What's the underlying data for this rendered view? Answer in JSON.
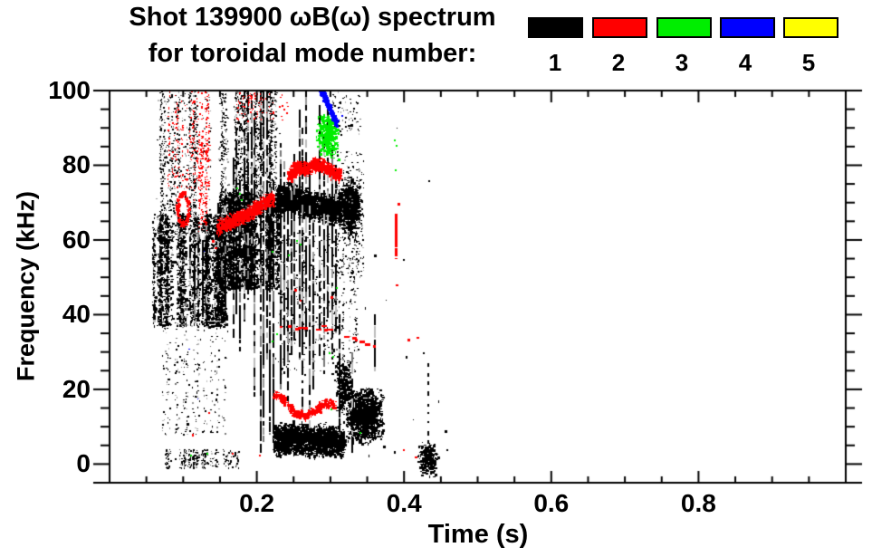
{
  "chart_data": {
    "type": "scatter",
    "title": "Shot 139900 ωB(ω) spectrum",
    "subtitle": "for toroidal mode number:",
    "x_axis": {
      "label": "Time (s)",
      "range": [
        0,
        1.0
      ],
      "major_ticks": [
        0.2,
        0.4,
        0.6,
        0.8
      ],
      "minor_tick_step": 0.05,
      "tick_labels": [
        "0.2",
        "0.4",
        "0.6",
        "0.8"
      ]
    },
    "y_axis": {
      "label": "Frequency (kHz)",
      "range": [
        -5,
        100
      ],
      "major_ticks": [
        100,
        80,
        60,
        40,
        20,
        0
      ],
      "minor_tick_step": 5,
      "tick_labels": [
        "100",
        "80",
        "60",
        "40",
        "20",
        "0"
      ]
    },
    "legend": {
      "entries": [
        {
          "label": "1",
          "color": "#000000"
        },
        {
          "label": "2",
          "color": "#ff0000"
        },
        {
          "label": "3",
          "color": "#00ee00"
        },
        {
          "label": "4",
          "color": "#0000ff"
        },
        {
          "label": "5",
          "color": "#ffff00"
        }
      ]
    },
    "mode_colors": {
      "1": "#000000",
      "2": "#ff0000",
      "3": "#00ee00",
      "4": "#0000ff",
      "5": "#ffff00"
    },
    "grid": false,
    "features": [
      {
        "mode": 1,
        "kind": "cloud",
        "desc": "n=1 sparse speckle 60-100 kHz",
        "t": [
          0.062,
          0.138
        ],
        "f": [
          60,
          100
        ],
        "n": 850,
        "size": [
          1,
          2
        ],
        "streaky": true,
        "gray": 0.25
      },
      {
        "mode": 1,
        "kind": "cloud",
        "desc": "n=1 dense cloud 37-67 kHz",
        "t": [
          0.058,
          0.158
        ],
        "f": [
          37,
          67
        ],
        "n": 2800,
        "size": [
          1,
          3
        ],
        "streaky": true,
        "gray": 0.12
      },
      {
        "mode": 1,
        "kind": "cloud",
        "desc": "n=1 sparse tail 8-38 kHz",
        "t": [
          0.07,
          0.16
        ],
        "f": [
          8,
          38
        ],
        "n": 280,
        "size": [
          1,
          2
        ],
        "streaky": true,
        "gray": 0.35
      },
      {
        "mode": 1,
        "kind": "cloud",
        "desc": "n=1 dense 47-73 kHz",
        "t": [
          0.148,
          0.228
        ],
        "f": [
          47,
          73
        ],
        "n": 3200,
        "size": [
          1,
          3
        ],
        "streaky": true,
        "gray": 0.1
      },
      {
        "mode": 1,
        "kind": "cloud",
        "desc": "n=1 upper speckle 73-100 kHz",
        "t": [
          0.148,
          0.232
        ],
        "f": [
          73,
          100
        ],
        "n": 1000,
        "size": [
          1,
          2
        ],
        "streaky": true,
        "gray": 0.25
      },
      {
        "mode": 1,
        "kind": "band",
        "desc": "n=1 band ~65-75 kHz",
        "path": [
          [
            0.225,
            70.5
          ],
          [
            0.245,
            71.5
          ],
          [
            0.265,
            70
          ],
          [
            0.285,
            69
          ],
          [
            0.3,
            68.5
          ],
          [
            0.315,
            69
          ],
          [
            0.335,
            70.5
          ]
        ],
        "halfw": 4.5,
        "n": 2400,
        "size": [
          1,
          3
        ]
      },
      {
        "mode": 1,
        "kind": "blob",
        "desc": "n=1 blob ~69 kHz at 0.33 s",
        "c": [
          0.326,
          69
        ],
        "rt": 0.012,
        "rf": 6,
        "n": 600,
        "size": [
          1,
          3
        ]
      },
      {
        "mode": 1,
        "kind": "cloud",
        "desc": "n=1 halo 50-84 kHz",
        "t": [
          0.307,
          0.345
        ],
        "f": [
          50,
          84
        ],
        "n": 240,
        "size": [
          1,
          2
        ],
        "gray": 0.2
      },
      {
        "mode": 1,
        "kind": "cloud",
        "desc": "n=1 sparse mid 24-62 kHz",
        "t": [
          0.225,
          0.335
        ],
        "f": [
          24,
          62
        ],
        "n": 480,
        "size": [
          1,
          2
        ],
        "streaky": true,
        "gray": 0.25
      },
      {
        "mode": 1,
        "kind": "cloud",
        "desc": "n=1 top specks 88-100 kHz",
        "t": [
          0.295,
          0.34
        ],
        "f": [
          88,
          100
        ],
        "n": 80,
        "size": [
          1,
          2
        ],
        "gray": 0.3
      },
      {
        "mode": 1,
        "kind": "band",
        "desc": "n=1 low band 2-11 kHz",
        "path": [
          [
            0.222,
            6.5
          ],
          [
            0.25,
            7
          ],
          [
            0.275,
            6.5
          ],
          [
            0.3,
            6.5
          ],
          [
            0.317,
            6
          ]
        ],
        "halfw": 4.8,
        "n": 2000,
        "size": [
          1,
          3
        ]
      },
      {
        "mode": 1,
        "kind": "blob",
        "desc": "n=1 blob 8-20 kHz",
        "c": [
          0.345,
          13
        ],
        "rt": 0.02,
        "rf": 5.5,
        "n": 1100,
        "size": [
          1,
          3
        ]
      },
      {
        "mode": 1,
        "kind": "blob",
        "desc": "n=1 lobe ~21 kHz",
        "c": [
          0.317,
          21
        ],
        "rt": 0.009,
        "rf": 5.5,
        "n": 300,
        "size": [
          1,
          3
        ]
      },
      {
        "mode": 1,
        "kind": "cloud",
        "desc": "n=1 bottom speckles",
        "t": [
          0.073,
          0.175
        ],
        "f": [
          -1,
          4
        ],
        "n": 300,
        "size": [
          1,
          2
        ],
        "streaky": true,
        "gray": 0.2
      },
      {
        "mode": 1,
        "kind": "blob",
        "desc": "n=1 blob near 0.43 s",
        "c": [
          0.431,
          1.5
        ],
        "rt": 0.01,
        "rf": 3.5,
        "n": 240,
        "size": [
          1,
          3
        ]
      },
      {
        "mode": 1,
        "kind": "vlines",
        "desc": "n=1 broadband bursts",
        "w": 2,
        "gray": 0.25,
        "lines": [
          [
            0.11,
            41,
            61
          ],
          [
            0.1155,
            39,
            59
          ],
          [
            0.121,
            42,
            63
          ],
          [
            0.1265,
            38,
            60
          ],
          [
            0.132,
            40,
            64
          ],
          [
            0.147,
            40,
            70
          ],
          [
            0.152,
            37,
            67
          ],
          [
            0.158,
            42,
            73
          ],
          [
            0.168,
            34,
            82
          ],
          [
            0.1725,
            40,
            90
          ],
          [
            0.177,
            30,
            76
          ],
          [
            0.1835,
            38,
            100
          ],
          [
            0.1885,
            44,
            100
          ],
          [
            0.1925,
            52,
            99
          ],
          [
            0.197,
            18,
            94
          ],
          [
            0.2055,
            3,
            100
          ],
          [
            0.2095,
            6,
            100
          ],
          [
            0.2135,
            28,
            100
          ],
          [
            0.218,
            8,
            86
          ],
          [
            0.2225,
            6,
            76
          ],
          [
            0.2325,
            20,
            86
          ],
          [
            0.2375,
            24,
            81
          ],
          [
            0.2425,
            17,
            70
          ],
          [
            0.247,
            28,
            78
          ],
          [
            0.2515,
            33,
            83
          ],
          [
            0.258,
            28,
            95
          ],
          [
            0.2625,
            14,
            90
          ],
          [
            0.2675,
            34,
            100
          ],
          [
            0.272,
            9,
            81
          ],
          [
            0.2765,
            20,
            70
          ],
          [
            0.285,
            29,
            96
          ],
          [
            0.292,
            24,
            88
          ],
          [
            0.297,
            39,
            97
          ],
          [
            0.302,
            28,
            90
          ],
          [
            0.307,
            35,
            80
          ],
          [
            0.313,
            8,
            40
          ],
          [
            0.33,
            3,
            30
          ],
          [
            0.36,
            25,
            40
          ]
        ]
      },
      {
        "mode": 1,
        "kind": "vlines",
        "desc": "n=1 dashed streak 0.434 s",
        "w": 2,
        "dash": true,
        "lines": [
          [
            0.4335,
            4,
            27
          ]
        ]
      },
      {
        "mode": 1,
        "kind": "dots",
        "desc": "n=1 scattered points",
        "size": [
          1,
          3
        ],
        "pts": [
          [
            0.359,
            56
          ],
          [
            0.375,
            44
          ],
          [
            0.39,
            90
          ],
          [
            0.398,
            55
          ],
          [
            0.402,
            29
          ],
          [
            0.412,
            12
          ],
          [
            0.372,
            5
          ],
          [
            0.386,
            3.5
          ],
          [
            0.352,
            2.5
          ],
          [
            0.337,
            31
          ],
          [
            0.347,
            42
          ],
          [
            0.433,
            76
          ],
          [
            0.425,
            30
          ],
          [
            0.447,
            17
          ],
          [
            0.455,
            9
          ],
          [
            0.322,
            95
          ],
          [
            0.327,
            91
          ],
          [
            0.303,
            99
          ],
          [
            0.312,
            97
          ],
          [
            0.097,
            14
          ],
          [
            0.105,
            11
          ],
          [
            0.445,
            2
          ],
          [
            0.458,
            4
          ]
        ]
      },
      {
        "mode": 2,
        "kind": "cloud",
        "desc": "n=2 speckle 74-100 kHz",
        "t": [
          0.078,
          0.136
        ],
        "f": [
          74,
          101
        ],
        "n": 270,
        "size": [
          1,
          2
        ],
        "streaky": true
      },
      {
        "mode": 2,
        "kind": "ring",
        "desc": "n=2 ring ~68.5 kHz",
        "c": [
          0.099,
          68.5
        ],
        "rt": 0.0078,
        "rf": 4,
        "n": 170,
        "size": [
          1,
          3
        ]
      },
      {
        "mode": 2,
        "kind": "cloud",
        "desc": "n=2 dashes 62-88 kHz",
        "t": [
          0.114,
          0.134
        ],
        "f": [
          62,
          88
        ],
        "n": 150,
        "size": [
          1,
          2
        ],
        "streaky": true
      },
      {
        "mode": 2,
        "kind": "band",
        "desc": "n=2 rising 64-71 kHz",
        "path": [
          [
            0.146,
            63.5
          ],
          [
            0.163,
            65
          ],
          [
            0.182,
            66.5
          ],
          [
            0.2,
            69
          ],
          [
            0.215,
            71
          ],
          [
            0.222,
            71.5
          ]
        ],
        "halfw": 2.4,
        "n": 800,
        "size": [
          1,
          3
        ]
      },
      {
        "mode": 2,
        "kind": "band",
        "desc": "n=2 band ~78-80 kHz",
        "path": [
          [
            0.242,
            77.5
          ],
          [
            0.255,
            79.5
          ],
          [
            0.266,
            79
          ],
          [
            0.278,
            80.5
          ],
          [
            0.29,
            80
          ],
          [
            0.301,
            78.5
          ],
          [
            0.313,
            77.5
          ]
        ],
        "halfw": 2.2,
        "n": 850,
        "size": [
          1,
          3
        ]
      },
      {
        "mode": 2,
        "kind": "cloud",
        "desc": "n=2 top dashes 92-100 kHz",
        "t": [
          0.168,
          0.242
        ],
        "f": [
          92,
          101
        ],
        "n": 90,
        "size": [
          1,
          2
        ],
        "streaky": true
      },
      {
        "mode": 2,
        "kind": "dashes",
        "desc": "n=2 descending 37-30 kHz",
        "path": [
          [
            0.228,
            37
          ],
          [
            0.26,
            36.5
          ],
          [
            0.288,
            36.5
          ],
          [
            0.307,
            35.5
          ],
          [
            0.322,
            34
          ],
          [
            0.337,
            33.2
          ],
          [
            0.352,
            32.4
          ],
          [
            0.368,
            30.6
          ]
        ],
        "halfw": 0.8,
        "size": [
          2,
          3
        ]
      },
      {
        "mode": 2,
        "kind": "band",
        "desc": "n=2 wavy 12-19 kHz",
        "path": [
          [
            0.222,
            19
          ],
          [
            0.236,
            17.5
          ],
          [
            0.25,
            14
          ],
          [
            0.265,
            13
          ],
          [
            0.279,
            14.5
          ],
          [
            0.291,
            16.5
          ],
          [
            0.305,
            16
          ]
        ],
        "halfw": 1.4,
        "n": 420,
        "size": [
          1,
          3
        ]
      },
      {
        "mode": 2,
        "kind": "vlines",
        "desc": "n=2 streak at 0.39 s",
        "w": 3,
        "lines": [
          [
            0.3885,
            55,
            67
          ]
        ]
      },
      {
        "mode": 2,
        "kind": "dots",
        "desc": "n=2 scattered points",
        "size": [
          2,
          3
        ],
        "pts": [
          [
            0.3885,
            48
          ],
          [
            0.391,
            70
          ],
          [
            0.398,
            4
          ],
          [
            0.414,
            2
          ],
          [
            0.405,
            33.5
          ],
          [
            0.417,
            34
          ],
          [
            0.3,
            45
          ],
          [
            0.112,
            8
          ],
          [
            0.134,
            14
          ],
          [
            0.166,
            3
          ],
          [
            0.203,
            2.5
          ],
          [
            0.139,
            60
          ],
          [
            0.143,
            58
          ],
          [
            0.251,
            47
          ],
          [
            0.258,
            44
          ]
        ]
      },
      {
        "mode": 3,
        "kind": "blob",
        "desc": "n=3 blob ~88 kHz",
        "c": [
          0.2955,
          88
        ],
        "rt": 0.011,
        "rf": 4.6,
        "n": 450,
        "size": [
          1,
          3
        ]
      },
      {
        "mode": 3,
        "kind": "dots",
        "desc": "n=3 scattered points",
        "size": [
          2,
          2
        ],
        "pts": [
          [
            0.172,
            74
          ],
          [
            0.1755,
            72.5
          ],
          [
            0.178,
            71
          ],
          [
            0.253,
            60
          ],
          [
            0.258,
            59
          ],
          [
            0.298,
            30
          ],
          [
            0.3025,
            29
          ],
          [
            0.3,
            15
          ],
          [
            0.34,
            8.5
          ],
          [
            0.22,
            33
          ],
          [
            0.3865,
            87
          ],
          [
            0.3885,
            85.5
          ],
          [
            0.3875,
            79
          ],
          [
            0.307,
            47.5
          ],
          [
            0.226,
            35
          ],
          [
            0.109,
            2.5
          ],
          [
            0.131,
            3
          ],
          [
            0.22,
            57
          ],
          [
            0.242,
            56
          ]
        ]
      },
      {
        "mode": 4,
        "kind": "band",
        "desc": "n=4 descending 100-91 kHz",
        "path": [
          [
            0.2845,
            100.8
          ],
          [
            0.289,
            99
          ],
          [
            0.294,
            97
          ],
          [
            0.299,
            95
          ],
          [
            0.3035,
            93
          ],
          [
            0.3075,
            91.3
          ]
        ],
        "halfw": 1.1,
        "n": 220,
        "size": [
          2,
          3
        ]
      },
      {
        "mode": 4,
        "kind": "dots",
        "desc": "n=4 scattered points",
        "size": [
          1,
          2
        ],
        "pts": [
          [
            0.107,
            31
          ],
          [
            0.119,
            17.5
          ],
          [
            0.128,
            57
          ],
          [
            0.3115,
            95.5
          ],
          [
            0.3145,
            93.5
          ]
        ]
      }
    ]
  }
}
